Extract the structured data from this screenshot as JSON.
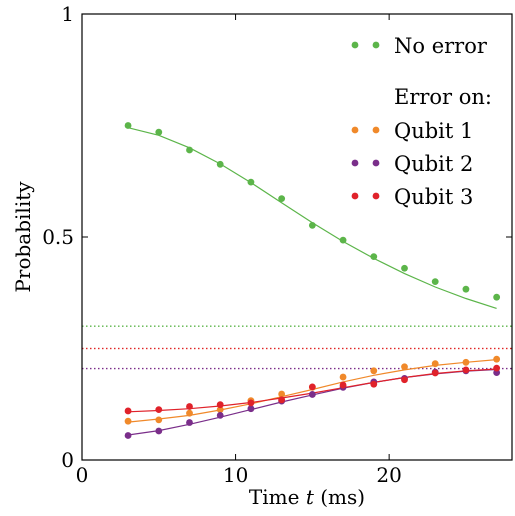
{
  "chart_data": {
    "type": "scatter",
    "title": "",
    "xlabel": "Time t (ms)",
    "ylabel": "Probability",
    "xlim": [
      0,
      28
    ],
    "ylim": [
      0,
      1
    ],
    "x_ticks": [
      0,
      10,
      20
    ],
    "y_ticks": [
      0,
      0.5,
      1
    ],
    "x_tick_labels": [
      "0",
      "10",
      "20"
    ],
    "y_tick_labels": [
      "0",
      "0.5",
      "1"
    ],
    "grid": false,
    "legend": {
      "placement": "top-right",
      "subheading": "Error on:"
    },
    "series": [
      {
        "name": "No error",
        "color": "#5cb54a",
        "x": [
          3,
          5,
          7,
          9,
          11,
          13,
          15,
          17,
          19,
          21,
          23,
          25,
          27
        ],
        "points": [
          0.75,
          0.735,
          0.695,
          0.663,
          0.623,
          0.586,
          0.526,
          0.493,
          0.456,
          0.43,
          0.4,
          0.383,
          0.365
        ],
        "fit": [
          0.745,
          0.728,
          0.7,
          0.664,
          0.622,
          0.577,
          0.532,
          0.49,
          0.452,
          0.418,
          0.388,
          0.362,
          0.34
        ],
        "asymptote": 0.3
      },
      {
        "name": "Qubit 1",
        "color": "#f0892a",
        "x": [
          3,
          5,
          7,
          9,
          11,
          13,
          15,
          17,
          19,
          21,
          23,
          25,
          27
        ],
        "points": [
          0.087,
          0.09,
          0.105,
          0.113,
          0.133,
          0.148,
          0.163,
          0.186,
          0.2,
          0.209,
          0.216,
          0.219,
          0.226
        ],
        "fit": [
          0.085,
          0.092,
          0.1,
          0.112,
          0.126,
          0.142,
          0.158,
          0.175,
          0.19,
          0.202,
          0.212,
          0.219,
          0.225
        ],
        "asymptote": 0.25
      },
      {
        "name": "Qubit 2",
        "color": "#7a2e8a",
        "x": [
          3,
          5,
          7,
          9,
          11,
          13,
          15,
          17,
          19,
          21,
          23,
          25,
          27
        ],
        "points": [
          0.055,
          0.065,
          0.084,
          0.1,
          0.115,
          0.132,
          0.147,
          0.163,
          0.175,
          0.183,
          0.197,
          0.2,
          0.196
        ],
        "fit": [
          0.056,
          0.066,
          0.08,
          0.096,
          0.113,
          0.13,
          0.146,
          0.161,
          0.174,
          0.185,
          0.193,
          0.199,
          0.203
        ],
        "asymptote": 0.205
      },
      {
        "name": "Qubit 3",
        "color": "#e0222a",
        "x": [
          3,
          5,
          7,
          9,
          11,
          13,
          15,
          17,
          19,
          21,
          23,
          25,
          27
        ],
        "points": [
          0.11,
          0.113,
          0.12,
          0.124,
          0.128,
          0.135,
          0.164,
          0.168,
          0.17,
          0.18,
          0.195,
          0.202,
          0.206
        ],
        "fit": [
          0.108,
          0.111,
          0.115,
          0.121,
          0.129,
          0.139,
          0.15,
          0.162,
          0.174,
          0.185,
          0.194,
          0.2,
          0.204
        ],
        "asymptote": 0.25
      }
    ]
  }
}
